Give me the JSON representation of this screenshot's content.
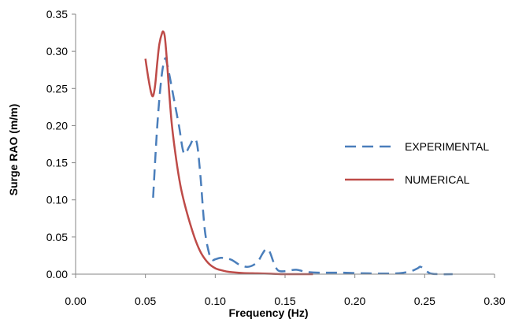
{
  "chart_data": {
    "type": "line",
    "xlabel": "Frequency (Hz)",
    "ylabel": "Surge RAO (m/m)",
    "xlim": [
      0.0,
      0.3
    ],
    "ylim": [
      0.0,
      0.35
    ],
    "xticks": [
      "0.00",
      "0.05",
      "0.10",
      "0.15",
      "0.20",
      "0.25",
      "0.30"
    ],
    "yticks": [
      "0.00",
      "0.05",
      "0.10",
      "0.15",
      "0.20",
      "0.25",
      "0.30",
      "0.35"
    ],
    "xtick_values": [
      0.0,
      0.05,
      0.1,
      0.15,
      0.2,
      0.25,
      0.3
    ],
    "ytick_values": [
      0.0,
      0.05,
      0.1,
      0.15,
      0.2,
      0.25,
      0.3,
      0.35
    ],
    "grid": false,
    "legend_position": "right",
    "series": [
      {
        "name": "EXPERIMENTAL",
        "color": "#4a7ebb",
        "dash": true,
        "x": [
          0.0555,
          0.0585,
          0.0615,
          0.064,
          0.0655,
          0.0675,
          0.07,
          0.074,
          0.0775,
          0.0815,
          0.0845,
          0.087,
          0.0895,
          0.0925,
          0.096,
          0.098,
          0.1,
          0.104,
          0.108,
          0.112,
          0.118,
          0.124,
          0.13,
          0.134,
          0.1365,
          0.139,
          0.142,
          0.145,
          0.15,
          0.158,
          0.165,
          0.175,
          0.19,
          0.21,
          0.23,
          0.24,
          0.245,
          0.247,
          0.25,
          0.254,
          0.26,
          0.27
        ],
        "y": [
          0.103,
          0.2,
          0.265,
          0.29,
          0.283,
          0.265,
          0.24,
          0.2,
          0.163,
          0.172,
          0.182,
          0.175,
          0.13,
          0.06,
          0.025,
          0.019,
          0.02,
          0.022,
          0.021,
          0.019,
          0.012,
          0.01,
          0.016,
          0.028,
          0.034,
          0.03,
          0.015,
          0.005,
          0.004,
          0.006,
          0.003,
          0.002,
          0.002,
          0.001,
          0.001,
          0.004,
          0.008,
          0.01,
          0.006,
          0.001,
          0.0,
          0.0
        ]
      },
      {
        "name": "NUMERICAL",
        "color": "#be4b48",
        "dash": false,
        "x": [
          0.05,
          0.052,
          0.054,
          0.0555,
          0.057,
          0.0585,
          0.06,
          0.062,
          0.063,
          0.064,
          0.0655,
          0.067,
          0.069,
          0.072,
          0.075,
          0.078,
          0.082,
          0.086,
          0.09,
          0.095,
          0.1,
          0.105,
          0.11,
          0.12,
          0.13,
          0.14,
          0.15,
          0.16,
          0.17
        ],
        "y": [
          0.29,
          0.265,
          0.245,
          0.24,
          0.255,
          0.285,
          0.31,
          0.325,
          0.326,
          0.318,
          0.285,
          0.245,
          0.2,
          0.155,
          0.12,
          0.095,
          0.068,
          0.045,
          0.028,
          0.015,
          0.008,
          0.005,
          0.003,
          0.0015,
          0.001,
          0.0005,
          0.0,
          0.0,
          0.0
        ]
      }
    ]
  }
}
